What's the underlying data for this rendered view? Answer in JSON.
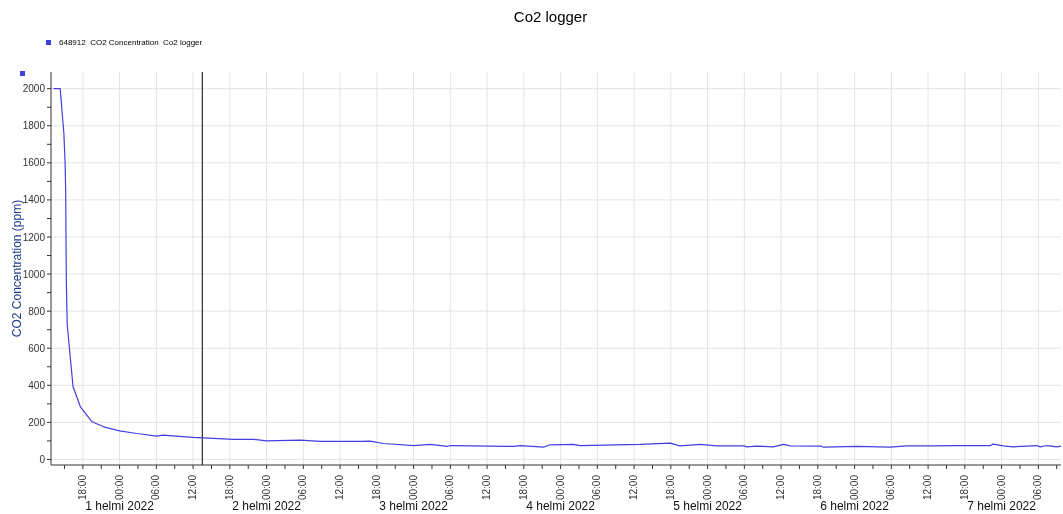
{
  "chart_data": {
    "type": "line",
    "title": "Co2 logger",
    "ylabel": "CO2 Concentration (ppm)",
    "legend": "top left",
    "grid": true,
    "marker": "none",
    "line_style": "solid",
    "xlim": [
      "2022-01-31T12:48",
      "2022-02-07T09:42"
    ],
    "ylim": [
      -30,
      2090
    ],
    "xticks": [
      {
        "value": "2022-01-31T15:00",
        "label": null
      },
      {
        "value": "2022-01-31T18:00",
        "label": "18:00"
      },
      {
        "value": "2022-01-31T21:00",
        "label": null
      },
      {
        "value": "2022-02-01T00:00",
        "label": "00:00"
      },
      {
        "value": "2022-02-01T03:00",
        "label": null
      },
      {
        "value": "2022-02-01T06:00",
        "label": "06:00"
      },
      {
        "value": "2022-02-01T09:00",
        "label": null
      },
      {
        "value": "2022-02-01T12:00",
        "label": "12:00"
      },
      {
        "value": "2022-02-01T15:00",
        "label": null
      },
      {
        "value": "2022-02-01T18:00",
        "label": "18:00"
      },
      {
        "value": "2022-02-01T21:00",
        "label": null
      },
      {
        "value": "2022-02-02T00:00",
        "label": "00:00"
      },
      {
        "value": "2022-02-02T03:00",
        "label": null
      },
      {
        "value": "2022-02-02T06:00",
        "label": "06:00"
      },
      {
        "value": "2022-02-02T09:00",
        "label": null
      },
      {
        "value": "2022-02-02T12:00",
        "label": "12:00"
      },
      {
        "value": "2022-02-02T15:00",
        "label": null
      },
      {
        "value": "2022-02-02T18:00",
        "label": "18:00"
      },
      {
        "value": "2022-02-02T21:00",
        "label": null
      },
      {
        "value": "2022-02-03T00:00",
        "label": "00:00"
      },
      {
        "value": "2022-02-03T03:00",
        "label": null
      },
      {
        "value": "2022-02-03T06:00",
        "label": "06:00"
      },
      {
        "value": "2022-02-03T09:00",
        "label": null
      },
      {
        "value": "2022-02-03T12:00",
        "label": "12:00"
      },
      {
        "value": "2022-02-03T15:00",
        "label": null
      },
      {
        "value": "2022-02-03T18:00",
        "label": "18:00"
      },
      {
        "value": "2022-02-03T21:00",
        "label": null
      },
      {
        "value": "2022-02-04T00:00",
        "label": "00:00"
      },
      {
        "value": "2022-02-04T03:00",
        "label": null
      },
      {
        "value": "2022-02-04T06:00",
        "label": "06:00"
      },
      {
        "value": "2022-02-04T09:00",
        "label": null
      },
      {
        "value": "2022-02-04T12:00",
        "label": "12:00"
      },
      {
        "value": "2022-02-04T15:00",
        "label": null
      },
      {
        "value": "2022-02-04T18:00",
        "label": "18:00"
      },
      {
        "value": "2022-02-04T21:00",
        "label": null
      },
      {
        "value": "2022-02-05T00:00",
        "label": "00:00"
      },
      {
        "value": "2022-02-05T03:00",
        "label": null
      },
      {
        "value": "2022-02-05T06:00",
        "label": "06:00"
      },
      {
        "value": "2022-02-05T09:00",
        "label": null
      },
      {
        "value": "2022-02-05T12:00",
        "label": "12:00"
      },
      {
        "value": "2022-02-05T15:00",
        "label": null
      },
      {
        "value": "2022-02-05T18:00",
        "label": "18:00"
      },
      {
        "value": "2022-02-05T21:00",
        "label": null
      },
      {
        "value": "2022-02-06T00:00",
        "label": "00:00"
      },
      {
        "value": "2022-02-06T03:00",
        "label": null
      },
      {
        "value": "2022-02-06T06:00",
        "label": "06:00"
      },
      {
        "value": "2022-02-06T09:00",
        "label": null
      },
      {
        "value": "2022-02-06T12:00",
        "label": "12:00"
      },
      {
        "value": "2022-02-06T15:00",
        "label": null
      },
      {
        "value": "2022-02-06T18:00",
        "label": "18:00"
      },
      {
        "value": "2022-02-06T21:00",
        "label": null
      },
      {
        "value": "2022-02-07T00:00",
        "label": "00:00"
      },
      {
        "value": "2022-02-07T03:00",
        "label": null
      },
      {
        "value": "2022-02-07T06:00",
        "label": "06:00"
      },
      {
        "value": "2022-02-07T09:00",
        "label": null
      }
    ],
    "yticks": [
      0,
      {
        "value": 100,
        "label": null
      },
      200,
      {
        "value": 300,
        "label": null
      },
      400,
      {
        "value": 500,
        "label": null
      },
      600,
      {
        "value": 700,
        "label": null
      },
      800,
      {
        "value": 900,
        "label": null
      },
      1000,
      {
        "value": 1100,
        "label": null
      },
      1200,
      {
        "value": 1300,
        "label": null
      },
      1400,
      {
        "value": 1500,
        "label": null
      },
      1600,
      {
        "value": 1700,
        "label": null
      },
      1800,
      {
        "value": 1900,
        "label": null
      },
      2000
    ],
    "annotations": [
      "1 helmi 2022",
      "2 helmi 2022",
      "3 helmi 2022",
      "4 helmi 2022",
      "5 helmi 2022",
      "6 helmi 2022",
      "7 helmi 2022"
    ],
    "ref_lines": [
      {
        "axis": "x",
        "value": "2022-02-01T13:30",
        "color": "#000000"
      }
    ],
    "series": [
      {
        "name": "648912  CO2 Concentration  Co2 logger",
        "color": "#4040e0",
        "x": [
          "2022-01-31T13:12",
          "2022-01-31T14:18",
          "2022-01-31T14:30",
          "2022-01-31T14:54",
          "2022-01-31T15:06",
          "2022-01-31T15:12",
          "2022-01-31T15:18",
          "2022-01-31T15:27",
          "2022-01-31T16:24",
          "2022-01-31T17:36",
          "2022-01-31T19:30",
          "2022-01-31T21:24",
          "2022-02-01T00:00",
          "2022-02-01T02:48",
          "2022-02-01T06:06",
          "2022-02-01T07:06",
          "2022-02-01T12:00",
          "2022-02-01T18:36",
          "2022-02-01T21:54",
          "2022-02-02T00:00",
          "2022-02-02T05:30",
          "2022-02-02T08:48",
          "2022-02-02T15:18",
          "2022-02-02T16:54",
          "2022-02-02T19:06",
          "2022-02-03T00:00",
          "2022-02-03T02:42",
          "2022-02-03T05:30",
          "2022-02-03T06:00",
          "2022-02-03T16:18",
          "2022-02-03T17:24",
          "2022-02-03T21:12",
          "2022-02-03T22:18",
          "2022-02-04T02:06",
          "2022-02-04T03:12",
          "2022-02-04T13:00",
          "2022-02-04T17:54",
          "2022-02-04T19:30",
          "2022-02-04T22:48",
          "2022-02-05T01:30",
          "2022-02-05T05:54",
          "2022-02-05T06:24",
          "2022-02-05T08:00",
          "2022-02-05T10:42",
          "2022-02-05T12:24",
          "2022-02-05T13:30",
          "2022-02-05T18:24",
          "2022-02-05T19:00",
          "2022-02-06T00:24",
          "2022-02-06T05:48",
          "2022-02-06T08:30",
          "2022-02-06T12:24",
          "2022-02-06T16:42",
          "2022-02-06T22:12",
          "2022-02-06T22:36",
          "2022-02-07T00:18",
          "2022-02-07T01:54",
          "2022-02-07T05:48",
          "2022-02-07T06:18",
          "2022-02-07T07:24",
          "2022-02-07T09:00",
          "2022-02-07T09:42"
        ],
        "values": [
          2000,
          2000,
          1920,
          1760,
          1600,
          1450,
          968,
          725,
          392,
          284,
          203,
          176,
          154,
          140,
          126,
          131,
          119,
          108,
          108,
          100,
          104,
          97,
          97,
          99,
          86,
          75,
          81,
          70,
          75,
          70,
          75,
          66,
          79,
          81,
          75,
          81,
          88,
          73,
          81,
          73,
          73,
          68,
          72,
          68,
          81,
          73,
          72,
          66,
          70,
          66,
          73,
          73,
          75,
          75,
          83,
          73,
          68,
          75,
          68,
          75,
          68,
          72
        ]
      }
    ]
  }
}
